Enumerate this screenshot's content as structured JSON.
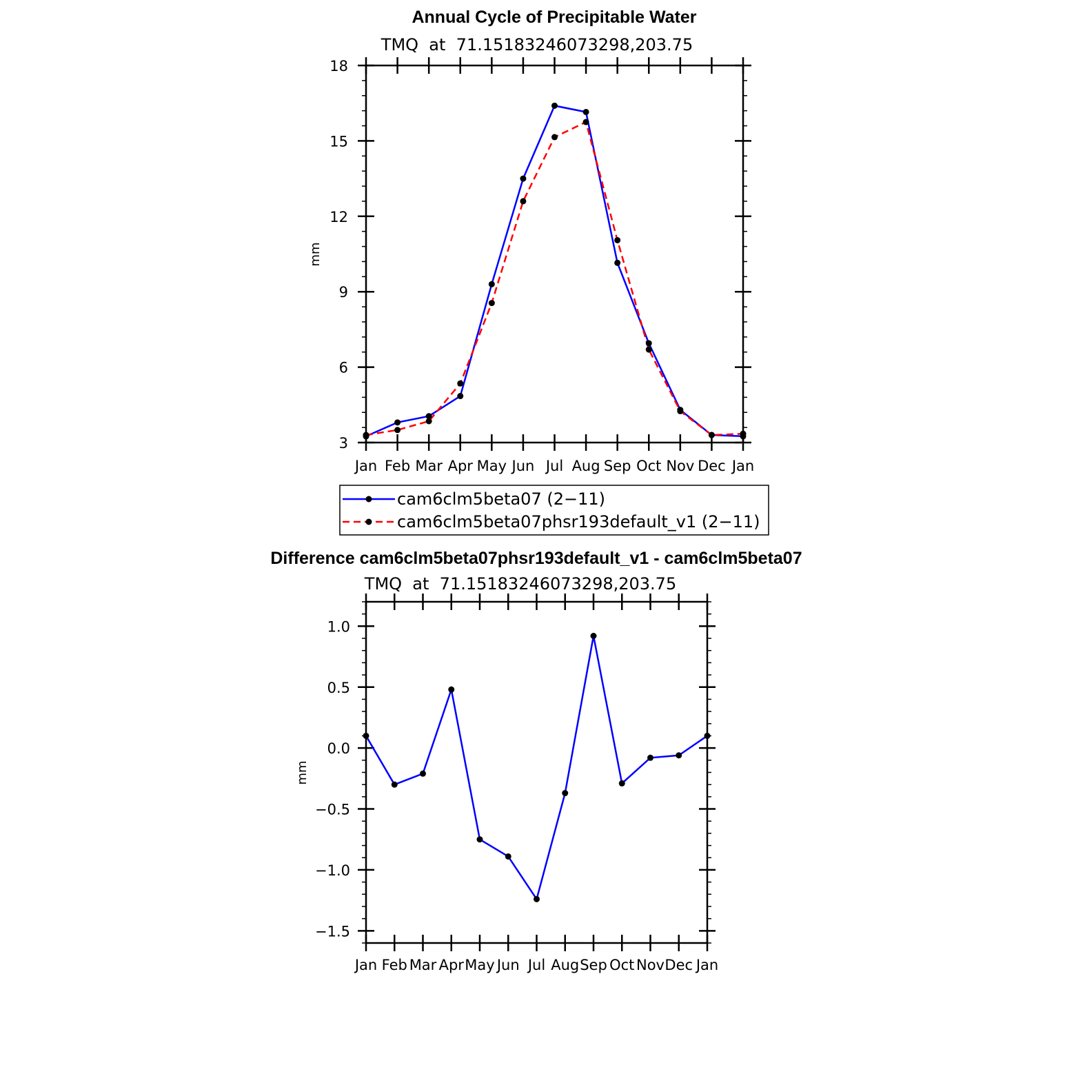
{
  "chart_data": [
    {
      "type": "line",
      "title": "Annual Cycle of Precipitable Water",
      "subtitle": "TMQ  at  71.15183246073298,203.75",
      "xlabel": "",
      "ylabel": "mm",
      "categories": [
        "Jan",
        "Feb",
        "Mar",
        "Apr",
        "May",
        "Jun",
        "Jul",
        "Aug",
        "Sep",
        "Oct",
        "Nov",
        "Dec",
        "Jan"
      ],
      "ylim": [
        3,
        18
      ],
      "yticks": [
        3,
        6,
        9,
        12,
        15,
        18
      ],
      "ytick_labels": [
        "3",
        "6",
        "9",
        "12",
        "15",
        "18"
      ],
      "series": [
        {
          "name": "cam6clm5beta07 (2−11)",
          "color": "#0000ff",
          "dash": "solid",
          "values": [
            3.25,
            3.8,
            4.05,
            4.85,
            9.3,
            13.5,
            16.4,
            16.15,
            10.15,
            6.95,
            4.3,
            3.3,
            3.25
          ]
        },
        {
          "name": "cam6clm5beta07phsr193default_v1 (2−11)",
          "color": "#ff0000",
          "dash": "dashed",
          "values": [
            3.3,
            3.5,
            3.85,
            5.35,
            8.55,
            12.6,
            15.15,
            15.75,
            11.05,
            6.7,
            4.25,
            3.3,
            3.35
          ]
        }
      ],
      "legend_position": "below"
    },
    {
      "type": "line",
      "title": "Difference cam6clm5beta07phsr193default_v1 - cam6clm5beta07",
      "subtitle": "TMQ  at  71.15183246073298,203.75",
      "xlabel": "",
      "ylabel": "mm",
      "categories": [
        "Jan",
        "Feb",
        "Mar",
        "Apr",
        "May",
        "Jun",
        "Jul",
        "Aug",
        "Sep",
        "Oct",
        "Nov",
        "Dec",
        "Jan"
      ],
      "ylim": [
        -1.6,
        1.2
      ],
      "yticks": [
        -1.5,
        -1.0,
        -0.5,
        0.0,
        0.5,
        1.0
      ],
      "ytick_labels": [
        "−1.5",
        "−1.0",
        "−0.5",
        "0.0",
        "0.5",
        "1.0"
      ],
      "series": [
        {
          "name": "difference",
          "color": "#0000ff",
          "dash": "solid",
          "values": [
            0.1,
            -0.3,
            -0.21,
            0.48,
            -0.75,
            -0.89,
            -1.24,
            -0.37,
            0.92,
            -0.29,
            -0.08,
            -0.06,
            0.1
          ]
        }
      ]
    }
  ]
}
